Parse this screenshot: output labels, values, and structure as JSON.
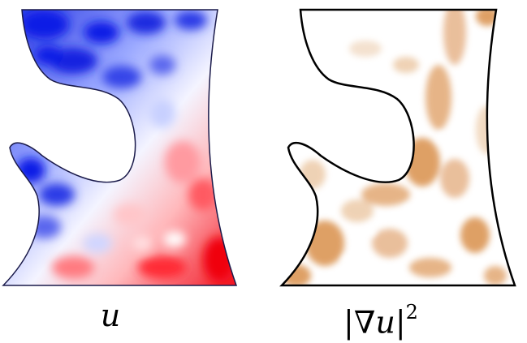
{
  "panels": [
    {
      "id": "left",
      "caption": "u",
      "colormap": "blue-white-red"
    },
    {
      "id": "right",
      "caption_parts": {
        "bar1": "|",
        "nabla": "∇",
        "var": "u",
        "bar2": "|",
        "exp": "2"
      },
      "colormap": "white-orange"
    }
  ],
  "colors": {
    "blue": "#0a1ee6",
    "red": "#f00010",
    "orange": "#d9904c",
    "outline": "#000000"
  }
}
